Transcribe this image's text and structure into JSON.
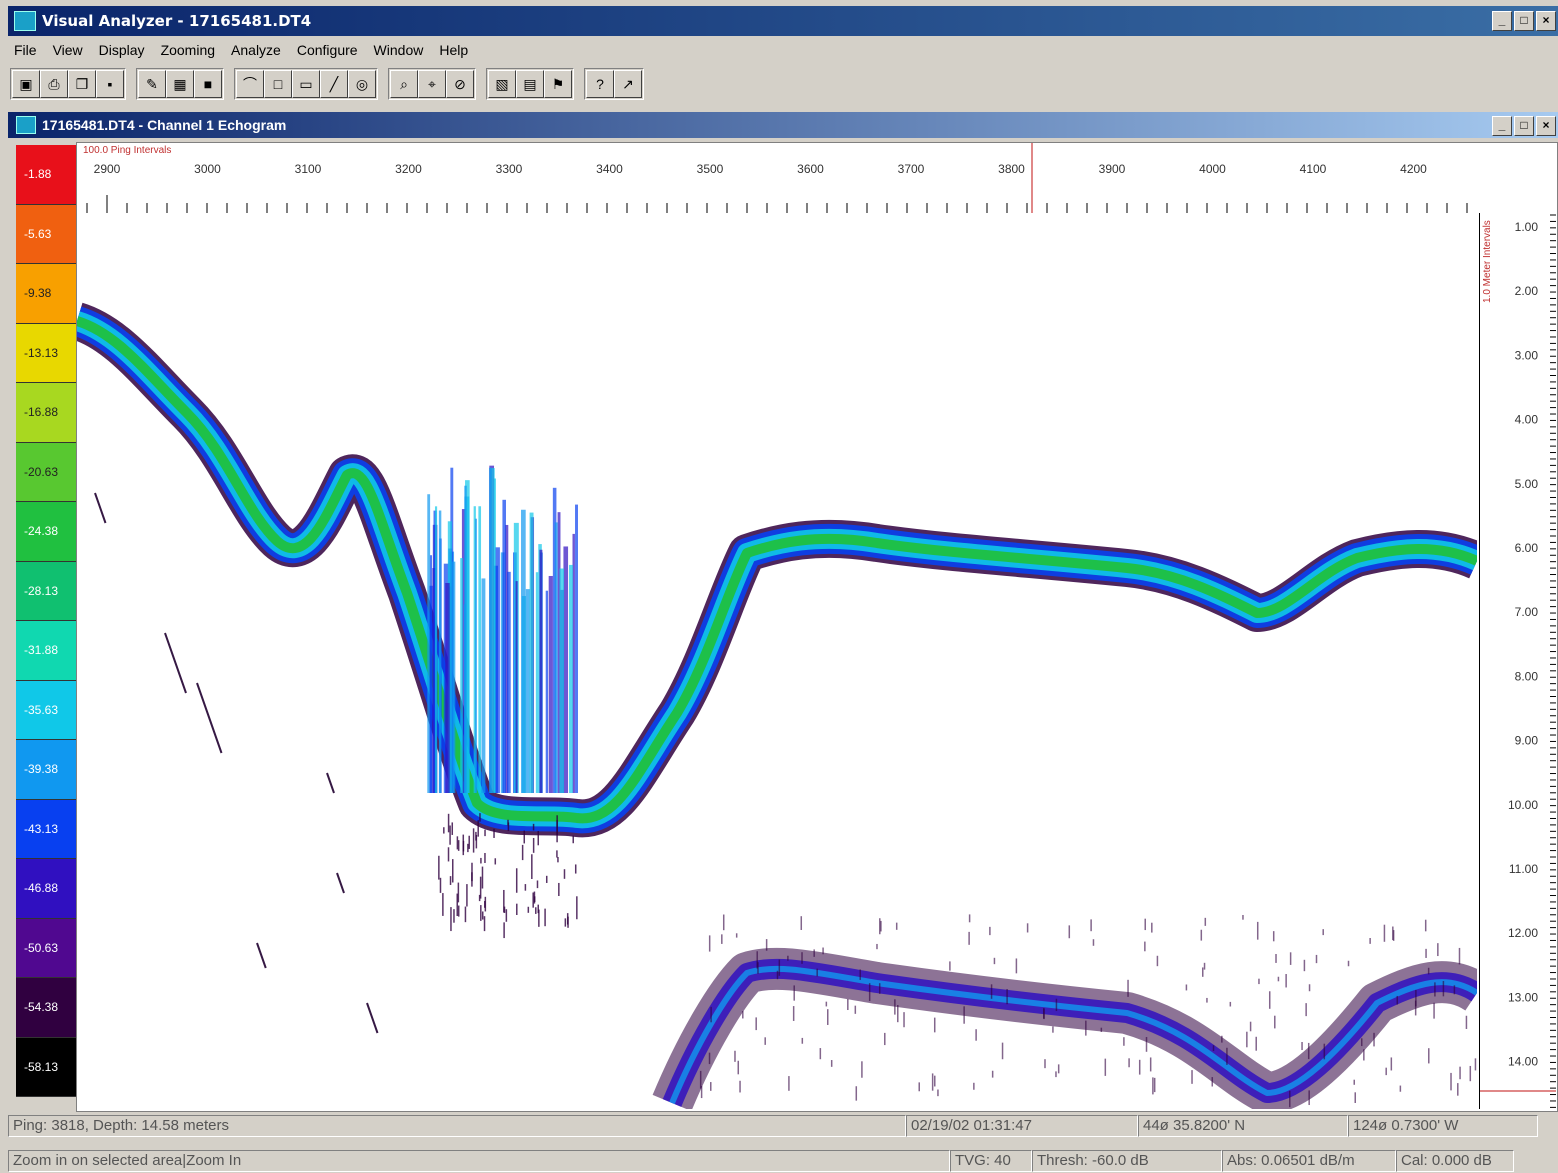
{
  "app": {
    "title": "Visual Analyzer - 17165481.DT4",
    "window_buttons": [
      "_",
      "□",
      "×"
    ]
  },
  "menu": [
    "File",
    "View",
    "Display",
    "Zooming",
    "Analyze",
    "Configure",
    "Window",
    "Help"
  ],
  "toolbar_groups": [
    [
      "open-icon",
      "print-icon",
      "copy-icon",
      "save-icon"
    ],
    [
      "edit-icon",
      "grid-icon",
      "color-icon"
    ],
    [
      "chart-icon",
      "fill-icon",
      "panel-icon",
      "pen-icon",
      "target-icon"
    ],
    [
      "zoom-in-icon",
      "zoom-out-icon",
      "no-zoom-icon"
    ],
    [
      "palette-icon",
      "table-icon",
      "flag-icon"
    ],
    [
      "help-icon",
      "context-help-icon"
    ]
  ],
  "child_window": {
    "title": "17165481.DT4 - Channel 1  Echogram",
    "buttons": [
      "_",
      "□",
      "×"
    ]
  },
  "color_scale": {
    "labels": [
      "-1.88",
      "-5.63",
      "-9.38",
      "-13.13",
      "-16.88",
      "-20.63",
      "-24.38",
      "-28.13",
      "-31.88",
      "-35.63",
      "-39.38",
      "-43.13",
      "-46.88",
      "-50.63",
      "-54.38",
      "-58.13"
    ],
    "colors": [
      "#e8101a",
      "#f06010",
      "#f8a000",
      "#e8d800",
      "#a8d820",
      "#58c830",
      "#20c040",
      "#10c070",
      "#10d8b0",
      "#10c8e8",
      "#1098f0",
      "#0840f0",
      "#3010c0",
      "#500890",
      "#300040",
      "#000000"
    ]
  },
  "h_ruler": {
    "title": "100.0 Ping Intervals",
    "ticks": [
      "2900",
      "3000",
      "3100",
      "3200",
      "3300",
      "3400",
      "3500",
      "3600",
      "3700",
      "3800",
      "3900",
      "4000",
      "4100",
      "4200"
    ]
  },
  "v_ruler": {
    "title": "1.0 Meter Intervals",
    "ticks": [
      "1.00",
      "2.00",
      "3.00",
      "4.00",
      "5.00",
      "6.00",
      "7.00",
      "8.00",
      "9.00",
      "10.00",
      "11.00",
      "12.00",
      "13.00",
      "14.00"
    ]
  },
  "status_bar": {
    "ping_depth": "Ping: 3818, Depth: 14.58 meters",
    "datetime": "02/19/02 01:31:47",
    "latitude": "44ø 35.8200' N",
    "longitude": "124ø 0.7300' W"
  },
  "message_bar": {
    "message": "Zoom in on selected area|Zoom In",
    "tvg": "TVG: 40",
    "thresh": "Thresh: -60.0 dB",
    "abs": "Abs: 0.06501 dB/m",
    "cal": "Cal: 0.000 dB"
  }
}
